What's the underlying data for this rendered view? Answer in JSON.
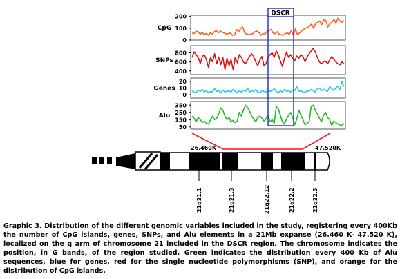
{
  "dscr_label": "DSCR",
  "start_coord": "26.460K",
  "end_coord": "47.520K",
  "bands": [
    "21q21.1",
    "21q21.3",
    "21q22.12",
    "21q22.2",
    "21q22.3"
  ],
  "caption": "Graphic 3. Distribution of the different genomic variables included in the study, registering every 400Kb the number of CpG islands, genes, SNPs, and Alu elements in a 21Mb expanse (26.460 K- 47.520 K), localized on the q arm of chromosome 21 included in the DSCR region. The chromosome indicates the position, in G bands, of the region studied. Green indicates the distribution every 400 Kb of Alu sequences, blue for genes, red for the single nucleotide polymorphisms (SNP), and orange for the distribution of CpG islands.",
  "chart_data": [
    {
      "type": "line",
      "ylabel": "CpG",
      "color": "#ff5a1a",
      "ylim": [
        0,
        210
      ],
      "yticks": [
        "200",
        "100",
        "0"
      ],
      "ytick_values": [
        200,
        100,
        0
      ],
      "values": [
        60,
        55,
        75,
        70,
        50,
        65,
        45,
        55,
        40,
        60,
        50,
        70,
        80,
        60,
        75,
        65,
        60,
        50,
        55,
        60,
        40,
        45,
        90,
        70,
        100,
        110,
        60,
        50,
        45,
        50,
        55,
        70,
        75,
        65,
        40,
        55,
        50,
        75,
        80,
        90,
        60,
        55,
        70,
        50,
        45,
        40,
        55,
        60,
        50,
        80,
        40,
        95,
        45,
        60,
        75,
        90,
        100,
        105,
        120,
        135,
        100,
        140,
        150,
        160,
        130,
        170,
        165,
        110,
        140,
        150,
        175,
        140,
        185,
        160,
        150,
        165
      ]
    },
    {
      "type": "line",
      "ylabel": "SNPs",
      "color": "#e01010",
      "ylim": [
        320,
        960
      ],
      "yticks": [
        "800",
        "600",
        "400"
      ],
      "ytick_values": [
        800,
        600,
        400
      ],
      "values": [
        700,
        820,
        760,
        700,
        560,
        720,
        760,
        650,
        480,
        700,
        600,
        780,
        560,
        700,
        540,
        700,
        430,
        680,
        520,
        650,
        420,
        700,
        580,
        760,
        700,
        600,
        560,
        640,
        720,
        780,
        720,
        600,
        520,
        640,
        720,
        520,
        560,
        700,
        760,
        800,
        700,
        840,
        760,
        620,
        500,
        680,
        820,
        700,
        760,
        680,
        620,
        730,
        680,
        760,
        720,
        600,
        700,
        780,
        840,
        900,
        820,
        700,
        600,
        560,
        600,
        620,
        560,
        640,
        720,
        660,
        600,
        560,
        540,
        600,
        560
      ]
    },
    {
      "type": "line",
      "ylabel": "Genes",
      "color": "#22ccee",
      "ylim": [
        -5,
        25
      ],
      "yticks": [
        "20",
        "10",
        "0"
      ],
      "ytick_values": [
        20,
        10,
        0
      ],
      "values": [
        6,
        4,
        3,
        7,
        5,
        8,
        4,
        6,
        3,
        5,
        4,
        9,
        5,
        6,
        3,
        7,
        4,
        5,
        6,
        4,
        8,
        5,
        3,
        6,
        4,
        7,
        5,
        10,
        4,
        6,
        5,
        8,
        4,
        3,
        6,
        5,
        4,
        7,
        5,
        6,
        9,
        5,
        3,
        6,
        4,
        8,
        5,
        6,
        4,
        7,
        6,
        12,
        5,
        6,
        4,
        3,
        6,
        5,
        8,
        6,
        4,
        9,
        10,
        6,
        8,
        7,
        5,
        12,
        9,
        6,
        10,
        13,
        8,
        20,
        12
      ]
    },
    {
      "type": "line",
      "ylabel": "Alu",
      "color": "#22bb22",
      "ylim": [
        20,
        400
      ],
      "yticks": [
        "350",
        "250",
        "150",
        "50"
      ],
      "ytick_values": [
        350,
        250,
        150,
        50
      ],
      "values": [
        200,
        170,
        120,
        180,
        150,
        110,
        130,
        100,
        90,
        150,
        200,
        150,
        170,
        230,
        310,
        280,
        200,
        150,
        180,
        120,
        140,
        110,
        130,
        250,
        200,
        280,
        350,
        320,
        270,
        200,
        160,
        120,
        180,
        200,
        170,
        130,
        160,
        210,
        120,
        150,
        100,
        330,
        300,
        210,
        120,
        90,
        160,
        210,
        250,
        180,
        80,
        160,
        280,
        210,
        150,
        80,
        100,
        120,
        330,
        350,
        280,
        230,
        170,
        120,
        210,
        250,
        180,
        150,
        70,
        130,
        110,
        90,
        80,
        70,
        100
      ]
    }
  ]
}
